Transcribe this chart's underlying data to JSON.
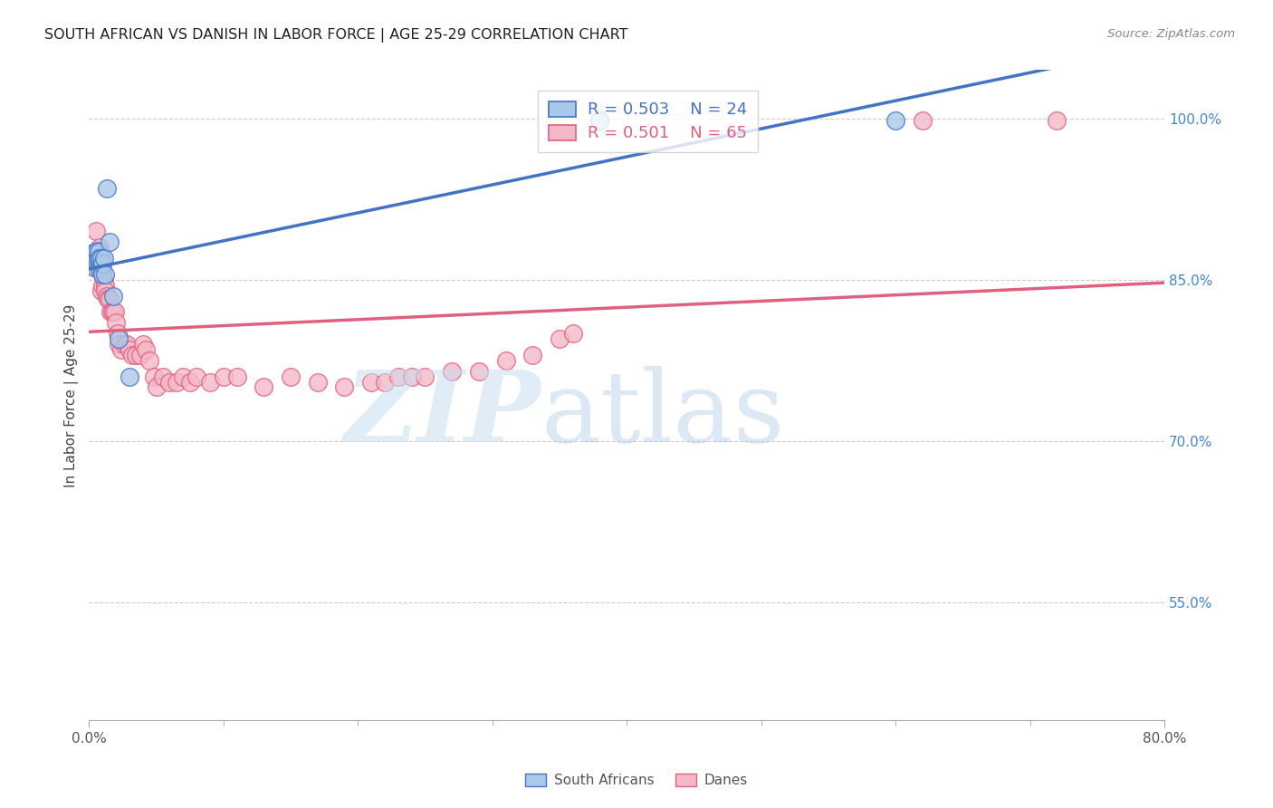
{
  "title": "SOUTH AFRICAN VS DANISH IN LABOR FORCE | AGE 25-29 CORRELATION CHART",
  "source": "Source: ZipAtlas.com",
  "ylabel": "In Labor Force | Age 25-29",
  "xlim": [
    0.0,
    0.8
  ],
  "ylim": [
    0.44,
    1.045
  ],
  "yticks": [
    0.55,
    0.7,
    0.85,
    1.0
  ],
  "yticklabels": [
    "55.0%",
    "70.0%",
    "85.0%",
    "100.0%"
  ],
  "blue_color": "#aac8e8",
  "pink_color": "#f5b8c8",
  "blue_line_color": "#4472c4",
  "pink_line_color": "#e06080",
  "legend_r_blue": "R = 0.503",
  "legend_n_blue": "N = 24",
  "legend_r_pink": "R = 0.501",
  "legend_n_pink": "N = 65",
  "blue_x": [
    0.002,
    0.003,
    0.004,
    0.005,
    0.005,
    0.006,
    0.006,
    0.007,
    0.007,
    0.008,
    0.008,
    0.009,
    0.009,
    0.01,
    0.01,
    0.011,
    0.012,
    0.013,
    0.015,
    0.018,
    0.022,
    0.03,
    0.38,
    0.6
  ],
  "blue_y": [
    0.87,
    0.875,
    0.862,
    0.868,
    0.875,
    0.87,
    0.877,
    0.87,
    0.876,
    0.86,
    0.87,
    0.862,
    0.87,
    0.855,
    0.865,
    0.87,
    0.855,
    0.935,
    0.885,
    0.835,
    0.795,
    0.76,
    0.998,
    0.998
  ],
  "pink_x": [
    0.002,
    0.003,
    0.004,
    0.005,
    0.005,
    0.006,
    0.007,
    0.007,
    0.008,
    0.008,
    0.009,
    0.009,
    0.01,
    0.01,
    0.011,
    0.012,
    0.012,
    0.013,
    0.014,
    0.015,
    0.016,
    0.017,
    0.018,
    0.019,
    0.02,
    0.021,
    0.022,
    0.024,
    0.026,
    0.028,
    0.03,
    0.032,
    0.035,
    0.038,
    0.04,
    0.042,
    0.045,
    0.048,
    0.05,
    0.055,
    0.06,
    0.065,
    0.07,
    0.075,
    0.08,
    0.09,
    0.1,
    0.11,
    0.13,
    0.15,
    0.17,
    0.19,
    0.21,
    0.22,
    0.23,
    0.24,
    0.25,
    0.27,
    0.29,
    0.31,
    0.33,
    0.35,
    0.36,
    0.62,
    0.72
  ],
  "pink_y": [
    0.87,
    0.87,
    0.862,
    0.868,
    0.895,
    0.862,
    0.875,
    0.862,
    0.88,
    0.862,
    0.86,
    0.84,
    0.855,
    0.845,
    0.85,
    0.845,
    0.84,
    0.835,
    0.832,
    0.832,
    0.82,
    0.82,
    0.82,
    0.82,
    0.81,
    0.8,
    0.79,
    0.785,
    0.79,
    0.79,
    0.785,
    0.78,
    0.78,
    0.78,
    0.79,
    0.785,
    0.775,
    0.76,
    0.75,
    0.76,
    0.755,
    0.755,
    0.76,
    0.755,
    0.76,
    0.755,
    0.76,
    0.76,
    0.75,
    0.76,
    0.755,
    0.75,
    0.755,
    0.755,
    0.76,
    0.76,
    0.76,
    0.765,
    0.765,
    0.775,
    0.78,
    0.795,
    0.8,
    0.998,
    0.998
  ]
}
